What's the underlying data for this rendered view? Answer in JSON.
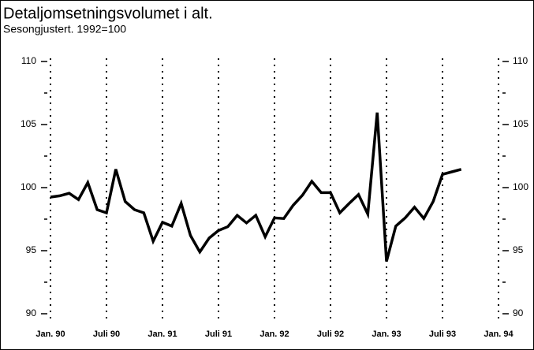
{
  "chart_data": {
    "type": "line",
    "title": "Detaljomsetningsvolumet i alt.",
    "subtitle": "Sesongjustert. 1992=100",
    "categories": [
      "Jan. 90",
      null,
      null,
      null,
      null,
      null,
      "Juli 90",
      null,
      null,
      null,
      null,
      null,
      "Jan. 91",
      null,
      null,
      null,
      null,
      null,
      "Juli 91",
      null,
      null,
      null,
      null,
      null,
      "Jan. 92",
      null,
      null,
      null,
      null,
      null,
      "Juli 92",
      null,
      null,
      null,
      null,
      null,
      "Jan. 93",
      null,
      null,
      null,
      null,
      null,
      "Juli 93",
      null,
      null,
      null,
      null,
      null,
      "Jan. 94"
    ],
    "series": [
      {
        "name": null,
        "color": "#000000",
        "values": [
          99.25,
          99.35,
          99.55,
          99.05,
          100.4,
          98.25,
          98.0,
          101.45,
          98.9,
          98.25,
          98.0,
          95.75,
          97.25,
          96.95,
          98.75,
          96.2,
          94.9,
          96.0,
          96.6,
          96.9,
          97.8,
          97.2,
          97.8,
          96.1,
          97.6,
          97.55,
          98.6,
          99.4,
          100.5,
          99.6,
          99.6,
          98.0,
          98.75,
          99.45,
          97.9,
          105.95,
          94.15,
          96.95,
          97.6,
          98.45,
          97.55,
          98.9,
          101.05,
          101.25,
          101.45,
          null,
          null,
          null,
          null
        ]
      }
    ],
    "ylim": [
      90,
      110
    ],
    "yticks": [
      90,
      95,
      100,
      105,
      110
    ],
    "minor_yticks": [
      92.5,
      97.5,
      102.5,
      107.5
    ],
    "grid": "dotted-vertical"
  }
}
